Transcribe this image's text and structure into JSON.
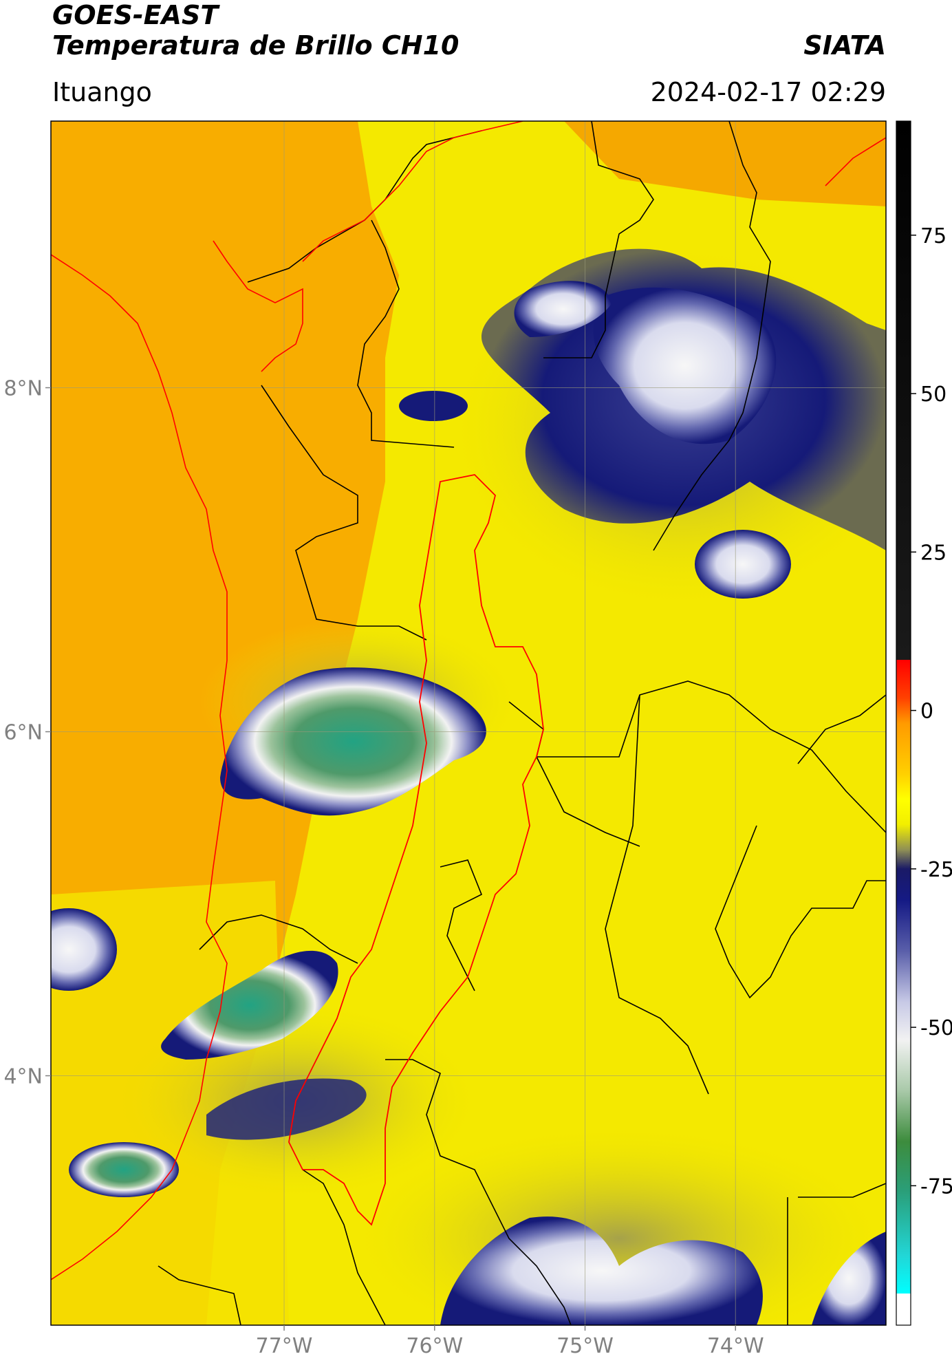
{
  "header": {
    "title_line1": "GOES-EAST",
    "title_line2": "Temperatura de Brillo CH10",
    "organization": "SIATA",
    "region": "Ituango",
    "datetime": "2024-02-17 02:29"
  },
  "map": {
    "lon_range": [
      -78.55,
      -73.0
    ],
    "lat_range": [
      2.55,
      9.55
    ],
    "lat_ticks": [
      {
        "value": 8,
        "label": "8°N"
      },
      {
        "value": 6,
        "label": "6°N"
      },
      {
        "value": 4,
        "label": "4°N"
      }
    ],
    "lon_ticks": [
      {
        "value": -77,
        "label": "77°W"
      },
      {
        "value": -76,
        "label": "76°W"
      },
      {
        "value": -75,
        "label": "75°W"
      },
      {
        "value": -74,
        "label": "74°W"
      }
    ],
    "gridlines": true,
    "colors": {
      "background_warm": "#f9a800",
      "land_mid": "#f5e600",
      "cold_navy": "#151a78",
      "cold_white": "#f2f2f2",
      "very_cold_green": "#5f9b62",
      "coldest_teal": "#22a383",
      "country_border": "#000000",
      "catchment_border": "#ff0000"
    }
  },
  "colorbar": {
    "range": [
      -97,
      93
    ],
    "ticks": [
      {
        "value": 75,
        "label": "75"
      },
      {
        "value": 50,
        "label": "50"
      },
      {
        "value": 25,
        "label": "25"
      },
      {
        "value": 0,
        "label": "0"
      },
      {
        "value": -25,
        "label": "-25"
      },
      {
        "value": -50,
        "label": "-50"
      },
      {
        "value": -75,
        "label": "-75"
      }
    ],
    "stops": [
      {
        "value": 93,
        "color": "#000000"
      },
      {
        "value": 8,
        "color": "#1a1a1a"
      },
      {
        "value": 8,
        "color": "#ff0000"
      },
      {
        "value": 2,
        "color": "#ff4000"
      },
      {
        "value": -2,
        "color": "#ff9a00"
      },
      {
        "value": -10,
        "color": "#ffd000"
      },
      {
        "value": -14,
        "color": "#ffff00"
      },
      {
        "value": -18,
        "color": "#f2ef00"
      },
      {
        "value": -22,
        "color": "#8f8f55"
      },
      {
        "value": -25,
        "color": "#1a1a66"
      },
      {
        "value": -30,
        "color": "#151a85"
      },
      {
        "value": -38,
        "color": "#5a5faa"
      },
      {
        "value": -46,
        "color": "#c7c9e6"
      },
      {
        "value": -52,
        "color": "#f2f2f2"
      },
      {
        "value": -60,
        "color": "#a9c9a9"
      },
      {
        "value": -68,
        "color": "#3d8c3d"
      },
      {
        "value": -76,
        "color": "#2a9f7a"
      },
      {
        "value": -86,
        "color": "#22d6d6"
      },
      {
        "value": -92,
        "color": "#00ffff"
      },
      {
        "value": -92,
        "color": "#ffffff"
      },
      {
        "value": -97,
        "color": "#ffffff"
      }
    ]
  }
}
